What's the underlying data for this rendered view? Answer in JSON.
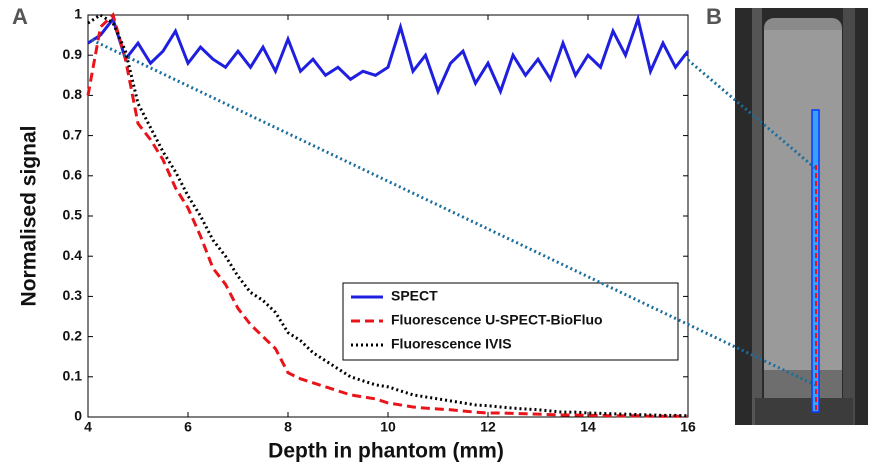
{
  "panel_labels": [
    "A",
    "B"
  ],
  "chart_data": {
    "type": "line",
    "xlabel": "Depth in phantom (mm)",
    "ylabel": "Normalised signal",
    "xlim": [
      4,
      16
    ],
    "ylim": [
      0,
      1
    ],
    "xticks": [
      4,
      6,
      8,
      10,
      12,
      14,
      16
    ],
    "yticks": [
      0,
      0.1,
      0.2,
      0.3,
      0.4,
      0.5,
      0.6,
      0.7,
      0.8,
      0.9,
      1
    ],
    "legend": "lower right",
    "x": [
      4,
      4.25,
      4.5,
      4.75,
      5,
      5.25,
      5.5,
      5.75,
      6,
      6.25,
      6.5,
      6.75,
      7,
      7.25,
      7.5,
      7.75,
      8,
      8.25,
      8.5,
      8.75,
      9,
      9.25,
      9.5,
      9.75,
      10,
      10.25,
      10.5,
      10.75,
      11,
      11.25,
      11.5,
      11.75,
      12,
      12.25,
      12.5,
      12.75,
      13,
      13.25,
      13.5,
      13.75,
      14,
      14.25,
      14.5,
      14.75,
      15,
      15.25,
      15.5,
      15.75,
      16
    ],
    "series": [
      {
        "name": "SPECT",
        "color": "#1f1fe0",
        "dash": "solid",
        "values": [
          0.93,
          0.95,
          0.99,
          0.89,
          0.93,
          0.88,
          0.91,
          0.96,
          0.88,
          0.92,
          0.89,
          0.87,
          0.91,
          0.87,
          0.92,
          0.86,
          0.94,
          0.86,
          0.89,
          0.85,
          0.87,
          0.84,
          0.86,
          0.85,
          0.87,
          0.97,
          0.86,
          0.9,
          0.81,
          0.88,
          0.91,
          0.83,
          0.88,
          0.81,
          0.9,
          0.85,
          0.89,
          0.84,
          0.93,
          0.85,
          0.9,
          0.87,
          0.96,
          0.9,
          0.99,
          0.86,
          0.93,
          0.87,
          0.91
        ]
      },
      {
        "name": "Fluorescence U-SPECT-BioFluo",
        "color": "#e8141a",
        "dash": "dashed",
        "values": [
          0.8,
          0.97,
          1.0,
          0.89,
          0.73,
          0.69,
          0.64,
          0.57,
          0.52,
          0.45,
          0.37,
          0.33,
          0.27,
          0.23,
          0.2,
          0.17,
          0.11,
          0.095,
          0.085,
          0.075,
          0.065,
          0.055,
          0.05,
          0.045,
          0.035,
          0.03,
          0.025,
          0.022,
          0.02,
          0.018,
          0.015,
          0.012,
          0.01,
          0.01,
          0.009,
          0.008,
          0.007,
          0.006,
          0.005,
          0.005,
          0.004,
          0.004,
          0.003,
          0.003,
          0.003,
          0.002,
          0.002,
          0.002,
          0.002
        ]
      },
      {
        "name": "Fluorescence IVIS",
        "color": "#000000",
        "dash": "dotted",
        "values": [
          0.98,
          1.0,
          0.98,
          0.91,
          0.78,
          0.72,
          0.66,
          0.61,
          0.55,
          0.5,
          0.44,
          0.4,
          0.35,
          0.31,
          0.29,
          0.26,
          0.21,
          0.19,
          0.16,
          0.14,
          0.12,
          0.1,
          0.09,
          0.08,
          0.075,
          0.065,
          0.055,
          0.05,
          0.045,
          0.04,
          0.035,
          0.03,
          0.028,
          0.025,
          0.022,
          0.02,
          0.018,
          0.015,
          0.012,
          0.012,
          0.01,
          0.009,
          0.008,
          0.007,
          0.006,
          0.005,
          0.004,
          0.004,
          0.003
        ]
      }
    ]
  }
}
